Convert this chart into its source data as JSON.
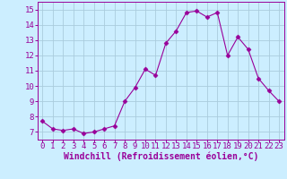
{
  "x": [
    0,
    1,
    2,
    3,
    4,
    5,
    6,
    7,
    8,
    9,
    10,
    11,
    12,
    13,
    14,
    15,
    16,
    17,
    18,
    19,
    20,
    21,
    22,
    23
  ],
  "y": [
    7.7,
    7.2,
    7.1,
    7.2,
    6.9,
    7.0,
    7.2,
    7.4,
    9.0,
    9.9,
    11.1,
    10.7,
    12.8,
    13.6,
    14.8,
    14.9,
    14.5,
    14.8,
    12.0,
    13.2,
    12.4,
    10.5,
    9.7,
    9.0
  ],
  "line_color": "#990099",
  "marker": "D",
  "marker_size": 2.5,
  "bg_color": "#cceeff",
  "grid_color": "#aaccdd",
  "xlabel": "Windchill (Refroidissement éolien,°C)",
  "xlabel_color": "#990099",
  "xlabel_fontsize": 7,
  "tick_color": "#990099",
  "tick_fontsize": 6.5,
  "ylim": [
    6.5,
    15.5
  ],
  "xlim": [
    -0.5,
    23.5
  ],
  "yticks": [
    7,
    8,
    9,
    10,
    11,
    12,
    13,
    14,
    15
  ],
  "xticks": [
    0,
    1,
    2,
    3,
    4,
    5,
    6,
    7,
    8,
    9,
    10,
    11,
    12,
    13,
    14,
    15,
    16,
    17,
    18,
    19,
    20,
    21,
    22,
    23
  ]
}
